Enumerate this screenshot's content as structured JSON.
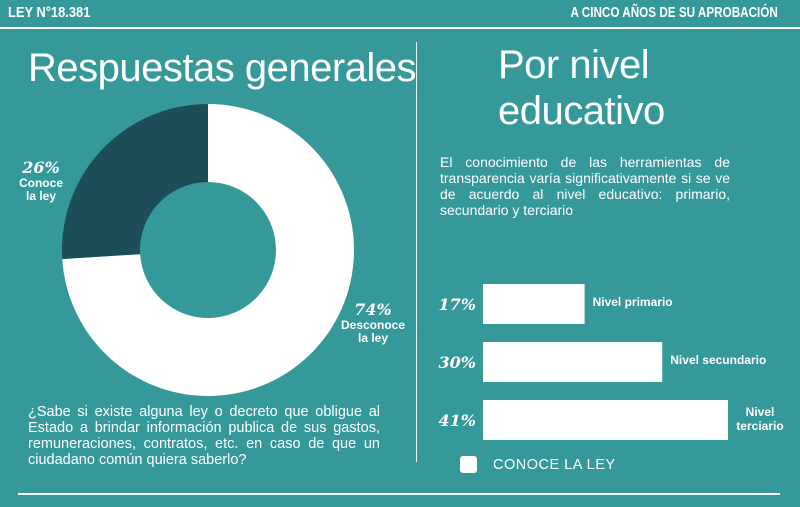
{
  "header": {
    "left": "LEY N°18.381",
    "right": "A CINCO AÑOS DE SU APROBACIÓN"
  },
  "left_panel": {
    "title": "Respuestas generales",
    "question": "¿Sabe si existe alguna ley o decreto que obligue al Estado a brindar información publica de sus gastos, remuneraciones, contratos, etc. en caso de que un ciudadano común quiera saberlo?"
  },
  "right_panel": {
    "title": "Por nivel educativo",
    "description": "El conocimiento de las herramientas de transparencia varía significativamente si se ve de acuerdo al nivel educativo: primario, secundario y terciario",
    "legend": "CONOCE LA LEY"
  },
  "colors": {
    "background": "#35999a",
    "dark_slice": "#1d4e57",
    "white": "#ffffff"
  },
  "chart_data": [
    {
      "type": "pie",
      "slices": [
        {
          "label_pct": "26%",
          "label_line1": "Conoce",
          "label_line2": "la ley",
          "value": 26,
          "color": "#1d4e57"
        },
        {
          "label_pct": "74%",
          "label_line1": "Desconoce",
          "label_line2": "la ley",
          "value": 74,
          "color": "#ffffff"
        }
      ]
    },
    {
      "type": "bar",
      "orientation": "horizontal",
      "categories": [
        "Nivel primario",
        "Nivel secundario",
        "Nivel terciario"
      ],
      "values": [
        17,
        30,
        41
      ],
      "value_labels": [
        "17%",
        "30%",
        "41%"
      ],
      "series": [
        {
          "name": "CONOCE LA LEY",
          "values": [
            17,
            30,
            41
          ]
        }
      ]
    }
  ]
}
